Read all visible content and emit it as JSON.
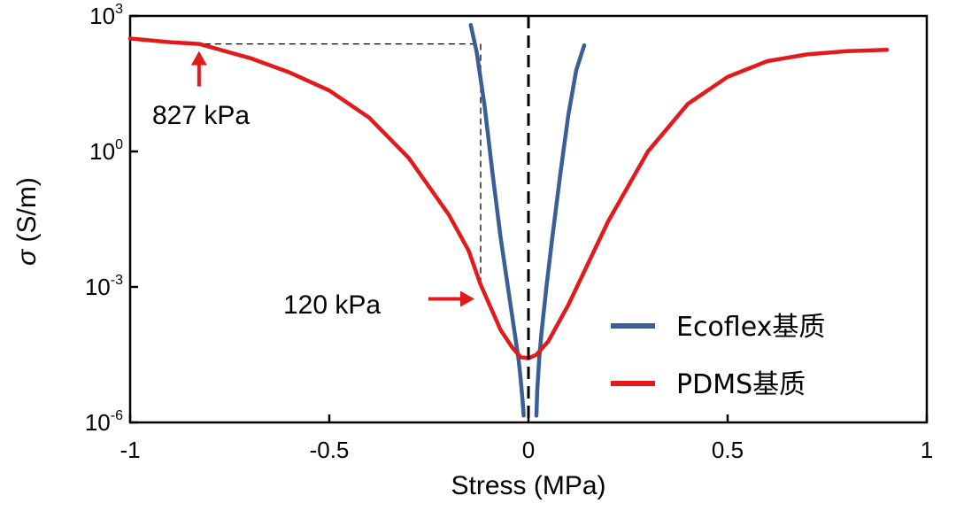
{
  "chart_data": {
    "type": "line",
    "title": "",
    "xlabel": "Stress (MPa)",
    "ylabel_symbol": "σ",
    "ylabel_unit": "(S/m)",
    "xlim": [
      -1,
      1
    ],
    "ylim_log10": [
      -6,
      3
    ],
    "y_scale": "log",
    "x_ticks": [
      -1,
      -0.5,
      0,
      0.5,
      1
    ],
    "x_tick_labels": [
      "-1",
      "-0.5",
      "0",
      "0.5",
      "1"
    ],
    "y_ticks": [
      {
        "base": "10",
        "exp": "3",
        "log": 3
      },
      {
        "base": "10",
        "exp": "0",
        "log": 0
      },
      {
        "base": "10",
        "exp": "-3",
        "log": -3
      },
      {
        "base": "10",
        "exp": "-6",
        "log": -6
      }
    ],
    "grid": false,
    "legend_position": "bottom-right",
    "reference_line_x": 0,
    "series": [
      {
        "name": "Ecoflex基质",
        "color": "#3a5e96",
        "segments": [
          [
            [
              -0.145,
              2.8
            ],
            [
              -0.13,
              2.2
            ],
            [
              -0.11,
              1.0
            ],
            [
              -0.09,
              -0.5
            ],
            [
              -0.07,
              -1.9
            ],
            [
              -0.05,
              -3.1
            ],
            [
              -0.035,
              -4.0
            ],
            [
              -0.025,
              -4.6
            ],
            [
              -0.02,
              -5.0
            ],
            [
              -0.015,
              -5.5
            ],
            [
              -0.012,
              -5.85
            ]
          ],
          [
            [
              0.02,
              -5.85
            ],
            [
              0.022,
              -5.3
            ],
            [
              0.027,
              -4.6
            ],
            [
              0.033,
              -4.0
            ],
            [
              0.045,
              -3.0
            ],
            [
              0.06,
              -1.9
            ],
            [
              0.08,
              -0.5
            ],
            [
              0.1,
              0.8
            ],
            [
              0.12,
              1.8
            ],
            [
              0.14,
              2.35
            ]
          ]
        ]
      },
      {
        "name": "PDMS基质",
        "color": "#e31a1c",
        "segments": [
          [
            [
              -1.0,
              2.5
            ],
            [
              -0.9,
              2.42
            ],
            [
              -0.827,
              2.38
            ],
            [
              -0.7,
              2.07
            ],
            [
              -0.6,
              1.75
            ],
            [
              -0.5,
              1.35
            ],
            [
              -0.4,
              0.75
            ],
            [
              -0.3,
              -0.15
            ],
            [
              -0.2,
              -1.4
            ],
            [
              -0.15,
              -2.2
            ],
            [
              -0.12,
              -2.95
            ],
            [
              -0.1,
              -3.35
            ],
            [
              -0.07,
              -3.95
            ],
            [
              -0.04,
              -4.35
            ],
            [
              -0.02,
              -4.55
            ],
            [
              0.0,
              -4.58
            ],
            [
              0.02,
              -4.5
            ],
            [
              0.05,
              -4.2
            ],
            [
              0.1,
              -3.4
            ],
            [
              0.2,
              -1.55
            ],
            [
              0.3,
              0.0
            ],
            [
              0.4,
              1.05
            ],
            [
              0.5,
              1.65
            ],
            [
              0.6,
              2.0
            ],
            [
              0.7,
              2.15
            ],
            [
              0.8,
              2.22
            ],
            [
              0.9,
              2.25
            ]
          ]
        ]
      }
    ],
    "reference_point": {
      "x": -0.12,
      "log_y": 2.38
    },
    "annotations": [
      {
        "text": "827 kPa",
        "x": -0.827,
        "log_y": 2.38,
        "arrow": "up"
      },
      {
        "text": "120 kPa",
        "x": -0.12,
        "log_y": -2.95,
        "arrow": "right"
      }
    ]
  }
}
